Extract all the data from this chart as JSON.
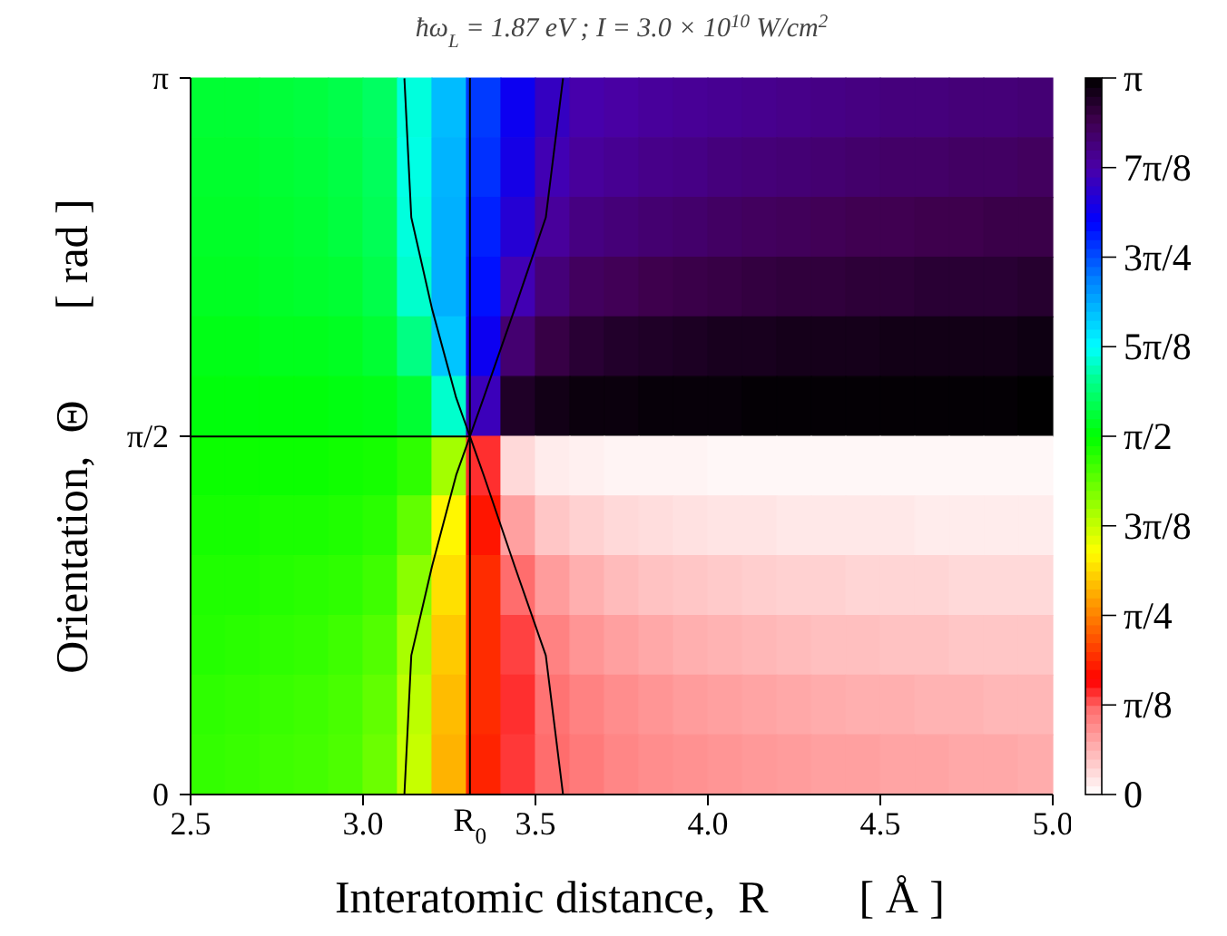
{
  "chart_data": {
    "type": "heatmap",
    "title": "ħω$_{L}$  =  1.87 eV ; I  =  3.0 × 10$^{10}$ W/cm$^{2}$",
    "xlabel": "Interatomic distance,  R        [ Å ]",
    "ylabel": "Orientation,  Θ        [ rad ]",
    "x": [
      2.55,
      2.65,
      2.75,
      2.85,
      2.95,
      3.05,
      3.15,
      3.25,
      3.35,
      3.45,
      3.55,
      3.65,
      3.75,
      3.85,
      3.95,
      4.05,
      4.15,
      4.25,
      4.35,
      4.45,
      4.55,
      4.65,
      4.75,
      4.85,
      4.95
    ],
    "xlim": [
      2.5,
      5.0
    ],
    "xticks": [
      2.5,
      {
        "value": 3.0,
        "label": "3.0"
      },
      3.5,
      {
        "value": 4.0,
        "label": "4.0"
      },
      4.5,
      {
        "value": 5.0,
        "label": "5.0"
      }
    ],
    "ylim": [
      0,
      3.1416
    ],
    "yticks": [
      0,
      {
        "value": 1.5708,
        "label": "π/2"
      },
      {
        "value": 3.1416,
        "label": "π"
      }
    ],
    "clim": [
      0,
      3.1416
    ],
    "cticks": [
      0,
      {
        "value": 0.3927,
        "label": "π/8"
      },
      {
        "value": 0.7854,
        "label": "π/4"
      },
      {
        "value": 1.1781,
        "label": "3π/8"
      },
      {
        "value": 1.5708,
        "label": "π/2"
      },
      {
        "value": 1.9635,
        "label": "5π/8"
      },
      {
        "value": 2.3562,
        "label": "3π/4"
      },
      {
        "value": 2.7489,
        "label": "7π/8"
      },
      {
        "value": 3.1416,
        "label": "π"
      }
    ],
    "cells": [
      [
        1.66,
        1.66,
        1.67,
        1.68,
        1.7,
        1.74,
        1.92,
        2.12,
        2.4,
        2.55,
        2.68,
        2.74,
        2.76,
        2.78,
        2.79,
        2.8,
        2.81,
        2.82,
        2.83,
        2.84,
        2.85,
        2.85,
        2.86,
        2.86,
        2.87
      ],
      [
        1.65,
        1.65,
        1.66,
        1.67,
        1.69,
        1.73,
        1.93,
        2.14,
        2.42,
        2.58,
        2.72,
        2.78,
        2.8,
        2.82,
        2.83,
        2.85,
        2.86,
        2.87,
        2.88,
        2.89,
        2.9,
        2.9,
        2.91,
        2.91,
        2.92
      ],
      [
        1.64,
        1.64,
        1.65,
        1.66,
        1.68,
        1.72,
        1.92,
        2.15,
        2.45,
        2.63,
        2.78,
        2.84,
        2.86,
        2.88,
        2.89,
        2.91,
        2.92,
        2.93,
        2.94,
        2.95,
        2.95,
        2.96,
        2.96,
        2.97,
        2.97
      ],
      [
        1.63,
        1.63,
        1.64,
        1.65,
        1.66,
        1.7,
        1.9,
        2.15,
        2.48,
        2.72,
        2.86,
        2.92,
        2.94,
        2.96,
        2.97,
        2.98,
        2.99,
        3.0,
        3.0,
        3.01,
        3.01,
        3.02,
        3.02,
        3.02,
        3.03
      ],
      [
        1.61,
        1.61,
        1.62,
        1.62,
        1.63,
        1.66,
        1.8,
        2.1,
        2.55,
        2.88,
        2.98,
        3.02,
        3.04,
        3.05,
        3.06,
        3.07,
        3.07,
        3.08,
        3.08,
        3.08,
        3.09,
        3.09,
        3.09,
        3.09,
        3.1
      ],
      [
        1.59,
        1.59,
        1.59,
        1.59,
        1.6,
        1.61,
        1.66,
        1.9,
        2.7,
        3.05,
        3.09,
        3.11,
        3.11,
        3.12,
        3.12,
        3.12,
        3.13,
        3.13,
        3.13,
        3.13,
        3.13,
        3.13,
        3.13,
        3.13,
        3.14
      ],
      [
        1.55,
        1.55,
        1.55,
        1.55,
        1.54,
        1.53,
        1.48,
        1.25,
        0.45,
        0.1,
        0.05,
        0.04,
        0.03,
        0.03,
        0.03,
        0.02,
        0.02,
        0.02,
        0.02,
        0.02,
        0.02,
        0.02,
        0.02,
        0.02,
        0.02
      ],
      [
        1.53,
        1.53,
        1.52,
        1.52,
        1.51,
        1.49,
        1.38,
        1.05,
        0.55,
        0.25,
        0.15,
        0.12,
        0.1,
        0.09,
        0.08,
        0.07,
        0.07,
        0.06,
        0.06,
        0.06,
        0.06,
        0.05,
        0.05,
        0.05,
        0.05
      ],
      [
        1.51,
        1.51,
        1.5,
        1.49,
        1.48,
        1.45,
        1.3,
        1.0,
        0.6,
        0.38,
        0.26,
        0.21,
        0.18,
        0.16,
        0.15,
        0.14,
        0.13,
        0.12,
        0.12,
        0.11,
        0.11,
        0.11,
        0.1,
        0.1,
        0.1
      ],
      [
        1.5,
        1.49,
        1.48,
        1.47,
        1.45,
        1.41,
        1.24,
        0.95,
        0.6,
        0.43,
        0.33,
        0.28,
        0.25,
        0.23,
        0.21,
        0.2,
        0.19,
        0.18,
        0.17,
        0.17,
        0.16,
        0.16,
        0.15,
        0.15,
        0.15
      ],
      [
        1.48,
        1.47,
        1.46,
        1.45,
        1.43,
        1.38,
        1.2,
        0.92,
        0.6,
        0.45,
        0.37,
        0.33,
        0.3,
        0.28,
        0.26,
        0.25,
        0.24,
        0.23,
        0.22,
        0.21,
        0.21,
        0.2,
        0.2,
        0.19,
        0.19
      ],
      [
        1.47,
        1.46,
        1.45,
        1.44,
        1.42,
        1.36,
        1.18,
        0.9,
        0.58,
        0.44,
        0.38,
        0.35,
        0.32,
        0.3,
        0.29,
        0.28,
        0.27,
        0.26,
        0.25,
        0.25,
        0.24,
        0.24,
        0.23,
        0.23,
        0.22
      ]
    ],
    "series": [
      {
        "type": "line",
        "color": "#000000",
        "x": [
          3.12,
          3.14,
          3.2,
          3.27,
          3.31,
          3.35,
          3.44,
          3.53,
          3.58
        ],
        "values": [
          0,
          0.61,
          1.0,
          1.4,
          1.57,
          1.74,
          2.13,
          2.53,
          3.14
        ]
      },
      {
        "type": "line",
        "color": "#000000",
        "x": [
          3.58,
          3.53,
          3.44,
          3.35,
          3.31,
          3.27,
          3.2,
          3.14,
          3.12
        ],
        "values": [
          0,
          0.61,
          1.0,
          1.4,
          1.57,
          1.74,
          2.13,
          2.53,
          3.14
        ]
      },
      {
        "type": "line",
        "color": "#000000",
        "x": [
          2.5,
          3.31
        ],
        "values": [
          1.57,
          1.57
        ]
      }
    ],
    "ref_lines": [
      {
        "axis": "x",
        "value": 3.31,
        "label": "R$_{0}$",
        "color": "#000000"
      }
    ]
  }
}
